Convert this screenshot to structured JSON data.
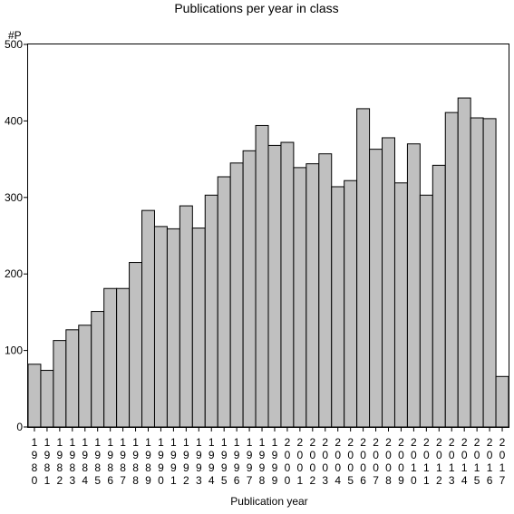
{
  "chart_data": {
    "type": "bar",
    "title": "Publications per year in class",
    "xlabel": "Publication year",
    "ylabel": "#P",
    "ylim": [
      0,
      500
    ],
    "yticks": [
      0,
      100,
      200,
      300,
      400,
      500
    ],
    "grid": false,
    "bar_color": "#c0c0c0",
    "categories": [
      "1980",
      "1981",
      "1982",
      "1983",
      "1984",
      "1985",
      "1986",
      "1987",
      "1988",
      "1989",
      "1990",
      "1991",
      "1992",
      "1993",
      "1994",
      "1995",
      "1996",
      "1997",
      "1998",
      "1999",
      "2000",
      "2001",
      "2002",
      "2003",
      "2004",
      "2005",
      "2006",
      "2007",
      "2008",
      "2009",
      "2010",
      "2011",
      "2012",
      "2013",
      "2014",
      "2015",
      "2016",
      "2017"
    ],
    "values": [
      82,
      74,
      113,
      127,
      133,
      151,
      181,
      181,
      215,
      283,
      262,
      259,
      289,
      260,
      303,
      327,
      345,
      361,
      394,
      368,
      372,
      339,
      344,
      357,
      314,
      322,
      416,
      363,
      378,
      319,
      370,
      303,
      342,
      411,
      430,
      404,
      403,
      66
    ]
  }
}
